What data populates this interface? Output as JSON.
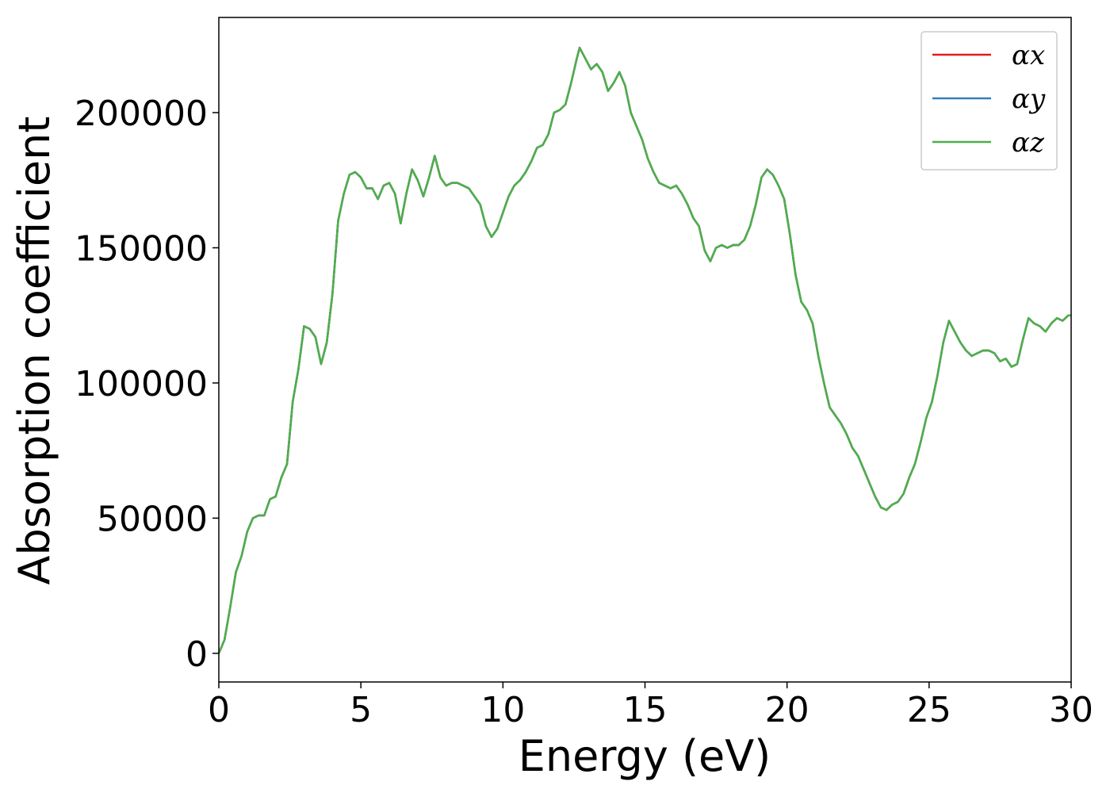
{
  "chart_data": {
    "type": "line",
    "xlabel": "Energy (eV)",
    "ylabel": "Absorption coefficient",
    "x": [
      0,
      0.2,
      0.4,
      0.6,
      0.8,
      1.0,
      1.2,
      1.4,
      1.6,
      1.8,
      2.0,
      2.2,
      2.4,
      2.6,
      2.8,
      3.0,
      3.2,
      3.4,
      3.6,
      3.8,
      4.0,
      4.2,
      4.4,
      4.6,
      4.8,
      5.0,
      5.2,
      5.4,
      5.6,
      5.8,
      6.0,
      6.2,
      6.4,
      6.6,
      6.8,
      7.0,
      7.2,
      7.4,
      7.6,
      7.8,
      8.0,
      8.2,
      8.4,
      8.6,
      8.8,
      9.0,
      9.2,
      9.4,
      9.6,
      9.8,
      10.0,
      10.2,
      10.4,
      10.6,
      10.8,
      11.0,
      11.2,
      11.4,
      11.6,
      11.8,
      12.0,
      12.2,
      12.4,
      12.6,
      12.7,
      12.9,
      13.1,
      13.3,
      13.5,
      13.7,
      13.9,
      14.1,
      14.3,
      14.5,
      14.7,
      14.9,
      15.1,
      15.3,
      15.5,
      15.7,
      15.9,
      16.1,
      16.3,
      16.5,
      16.7,
      16.9,
      17.1,
      17.3,
      17.5,
      17.7,
      17.9,
      18.1,
      18.3,
      18.5,
      18.7,
      18.9,
      19.1,
      19.3,
      19.5,
      19.7,
      19.9,
      20.1,
      20.3,
      20.5,
      20.7,
      20.9,
      21.1,
      21.3,
      21.5,
      21.7,
      21.9,
      22.1,
      22.3,
      22.5,
      22.7,
      22.9,
      23.1,
      23.3,
      23.5,
      23.7,
      23.9,
      24.1,
      24.3,
      24.5,
      24.7,
      24.9,
      25.1,
      25.3,
      25.5,
      25.7,
      25.9,
      26.1,
      26.3,
      26.5,
      26.7,
      26.9,
      27.1,
      27.3,
      27.5,
      27.7,
      27.9,
      28.1,
      28.3,
      28.5,
      28.7,
      28.9,
      29.1,
      29.3,
      29.5,
      29.7,
      29.9,
      30.0
    ],
    "series": [
      {
        "name": "αx",
        "color": "#e41a1c",
        "values": [
          0,
          5000,
          17000,
          30000,
          36000,
          45000,
          50000,
          51000,
          51000,
          57000,
          58000,
          65000,
          70000,
          93000,
          105000,
          121000,
          120000,
          117000,
          107000,
          115000,
          133000,
          160000,
          170000,
          177000,
          178000,
          176000,
          172000,
          172000,
          168000,
          173000,
          174000,
          170000,
          159000,
          170000,
          179000,
          175000,
          169000,
          176000,
          184000,
          176000,
          173000,
          174000,
          174000,
          173000,
          172000,
          169000,
          166000,
          158000,
          154000,
          157000,
          163000,
          169000,
          173000,
          175000,
          178000,
          182000,
          187000,
          188000,
          192000,
          200000,
          201000,
          203000,
          211000,
          220000,
          224000,
          220000,
          216000,
          218000,
          215000,
          208000,
          211000,
          215000,
          210000,
          200000,
          195000,
          190000,
          183000,
          178000,
          174000,
          173000,
          172000,
          173000,
          170000,
          166000,
          161000,
          158000,
          149000,
          145000,
          150000,
          151000,
          150000,
          151000,
          151000,
          153000,
          158000,
          166000,
          176000,
          179000,
          177000,
          173000,
          168000,
          155000,
          140000,
          130000,
          127000,
          122000,
          110000,
          100000,
          91000,
          88000,
          85000,
          81000,
          76000,
          73000,
          68000,
          63000,
          58000,
          54000,
          53000,
          55000,
          56000,
          59000,
          65000,
          70000,
          78000,
          87000,
          93000,
          103000,
          115000,
          123000,
          119000,
          115000,
          112000,
          110000,
          111000,
          112000,
          112000,
          111000,
          108000,
          109000,
          106000,
          107000,
          116000,
          124000,
          122000,
          121000,
          119000,
          122000,
          124000,
          123000,
          125000,
          125000
        ]
      },
      {
        "name": "αy",
        "color": "#377eb8",
        "values": [
          0,
          5000,
          17000,
          30000,
          36000,
          45000,
          50000,
          51000,
          51000,
          57000,
          58000,
          65000,
          70000,
          93000,
          105000,
          121000,
          120000,
          117000,
          107000,
          115000,
          133000,
          160000,
          170000,
          177000,
          178000,
          176000,
          172000,
          172000,
          168000,
          173000,
          174000,
          170000,
          159000,
          170000,
          179000,
          175000,
          169000,
          176000,
          184000,
          176000,
          173000,
          174000,
          174000,
          173000,
          172000,
          169000,
          166000,
          158000,
          154000,
          157000,
          163000,
          169000,
          173000,
          175000,
          178000,
          182000,
          187000,
          188000,
          192000,
          200000,
          201000,
          203000,
          211000,
          220000,
          224000,
          220000,
          216000,
          218000,
          215000,
          208000,
          211000,
          215000,
          210000,
          200000,
          195000,
          190000,
          183000,
          178000,
          174000,
          173000,
          172000,
          173000,
          170000,
          166000,
          161000,
          158000,
          149000,
          145000,
          150000,
          151000,
          150000,
          151000,
          151000,
          153000,
          158000,
          166000,
          176000,
          179000,
          177000,
          173000,
          168000,
          155000,
          140000,
          130000,
          127000,
          122000,
          110000,
          100000,
          91000,
          88000,
          85000,
          81000,
          76000,
          73000,
          68000,
          63000,
          58000,
          54000,
          53000,
          55000,
          56000,
          59000,
          65000,
          70000,
          78000,
          87000,
          93000,
          103000,
          115000,
          123000,
          119000,
          115000,
          112000,
          110000,
          111000,
          112000,
          112000,
          111000,
          108000,
          109000,
          106000,
          107000,
          116000,
          124000,
          122000,
          121000,
          119000,
          122000,
          124000,
          123000,
          125000,
          125000
        ]
      },
      {
        "name": "αz",
        "color": "#4daf4a",
        "values": [
          0,
          5000,
          17000,
          30000,
          36000,
          45000,
          50000,
          51000,
          51000,
          57000,
          58000,
          65000,
          70000,
          93000,
          105000,
          121000,
          120000,
          117000,
          107000,
          115000,
          133000,
          160000,
          170000,
          177000,
          178000,
          176000,
          172000,
          172000,
          168000,
          173000,
          174000,
          170000,
          159000,
          170000,
          179000,
          175000,
          169000,
          176000,
          184000,
          176000,
          173000,
          174000,
          174000,
          173000,
          172000,
          169000,
          166000,
          158000,
          154000,
          157000,
          163000,
          169000,
          173000,
          175000,
          178000,
          182000,
          187000,
          188000,
          192000,
          200000,
          201000,
          203000,
          211000,
          220000,
          224000,
          220000,
          216000,
          218000,
          215000,
          208000,
          211000,
          215000,
          210000,
          200000,
          195000,
          190000,
          183000,
          178000,
          174000,
          173000,
          172000,
          173000,
          170000,
          166000,
          161000,
          158000,
          149000,
          145000,
          150000,
          151000,
          150000,
          151000,
          151000,
          153000,
          158000,
          166000,
          176000,
          179000,
          177000,
          173000,
          168000,
          155000,
          140000,
          130000,
          127000,
          122000,
          110000,
          100000,
          91000,
          88000,
          85000,
          81000,
          76000,
          73000,
          68000,
          63000,
          58000,
          54000,
          53000,
          55000,
          56000,
          59000,
          65000,
          70000,
          78000,
          87000,
          93000,
          103000,
          115000,
          123000,
          119000,
          115000,
          112000,
          110000,
          111000,
          112000,
          112000,
          111000,
          108000,
          109000,
          106000,
          107000,
          116000,
          124000,
          122000,
          121000,
          119000,
          122000,
          124000,
          123000,
          125000,
          125000
        ]
      }
    ],
    "xlim": [
      0,
      30
    ],
    "xticks": [
      0,
      5,
      10,
      15,
      20,
      25,
      30
    ],
    "ylim": [
      -10600,
      235200
    ],
    "yticks": [
      0,
      50000,
      100000,
      150000,
      200000
    ],
    "legend": "upper right",
    "grid": false
  }
}
